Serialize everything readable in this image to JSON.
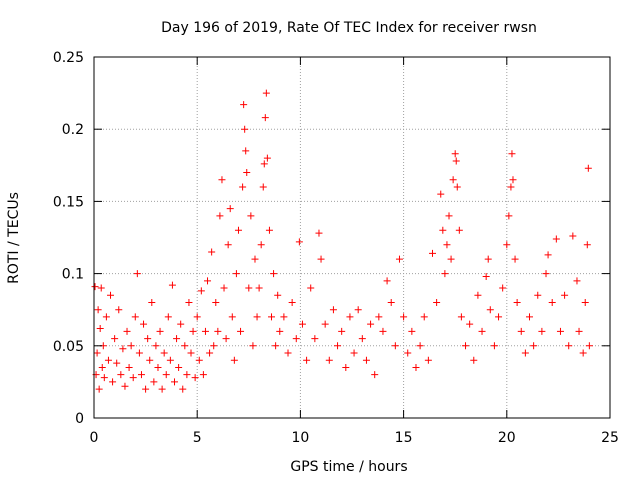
{
  "chart_data": {
    "type": "scatter",
    "title": "Day 196 of 2019, Rate Of TEC Index for receiver rwsn",
    "xlabel": "GPS time / hours",
    "ylabel": "ROTI / TECUs",
    "xlim": [
      0,
      25
    ],
    "ylim": [
      0,
      0.25
    ],
    "xticks": [
      0,
      5,
      10,
      15,
      20,
      25
    ],
    "yticks": [
      0,
      0.05,
      0.1,
      0.15,
      0.2,
      0.25
    ],
    "xtick_labels": [
      "0",
      "5",
      "10",
      "15",
      "20",
      "25"
    ],
    "ytick_labels": [
      "0",
      "0.05",
      "0.1",
      "0.15",
      "0.2",
      "0.25"
    ],
    "grid": true,
    "marker": "+",
    "color": "#ff0000",
    "series": [
      {
        "name": "ROTI",
        "points": [
          [
            0.05,
            0.091
          ],
          [
            0.1,
            0.03
          ],
          [
            0.15,
            0.045
          ],
          [
            0.2,
            0.075
          ],
          [
            0.25,
            0.02
          ],
          [
            0.3,
            0.062
          ],
          [
            0.35,
            0.09
          ],
          [
            0.4,
            0.035
          ],
          [
            0.45,
            0.05
          ],
          [
            0.5,
            0.028
          ],
          [
            0.6,
            0.07
          ],
          [
            0.7,
            0.04
          ],
          [
            0.8,
            0.085
          ],
          [
            0.9,
            0.025
          ],
          [
            1.0,
            0.055
          ],
          [
            1.1,
            0.038
          ],
          [
            1.2,
            0.075
          ],
          [
            1.3,
            0.03
          ],
          [
            1.4,
            0.048
          ],
          [
            1.5,
            0.022
          ],
          [
            1.6,
            0.06
          ],
          [
            1.7,
            0.035
          ],
          [
            1.8,
            0.05
          ],
          [
            1.9,
            0.028
          ],
          [
            2.0,
            0.07
          ],
          [
            2.1,
            0.1
          ],
          [
            2.2,
            0.045
          ],
          [
            2.3,
            0.03
          ],
          [
            2.4,
            0.065
          ],
          [
            2.5,
            0.02
          ],
          [
            2.6,
            0.055
          ],
          [
            2.7,
            0.04
          ],
          [
            2.8,
            0.08
          ],
          [
            2.9,
            0.025
          ],
          [
            3.0,
            0.05
          ],
          [
            3.1,
            0.035
          ],
          [
            3.2,
            0.06
          ],
          [
            3.3,
            0.02
          ],
          [
            3.4,
            0.045
          ],
          [
            3.5,
            0.03
          ],
          [
            3.6,
            0.07
          ],
          [
            3.7,
            0.04
          ],
          [
            3.8,
            0.092
          ],
          [
            3.9,
            0.025
          ],
          [
            4.0,
            0.055
          ],
          [
            4.1,
            0.035
          ],
          [
            4.2,
            0.065
          ],
          [
            4.3,
            0.02
          ],
          [
            4.4,
            0.05
          ],
          [
            4.5,
            0.03
          ],
          [
            4.6,
            0.08
          ],
          [
            4.7,
            0.045
          ],
          [
            4.8,
            0.06
          ],
          [
            4.9,
            0.028
          ],
          [
            5.0,
            0.07
          ],
          [
            5.1,
            0.04
          ],
          [
            5.2,
            0.088
          ],
          [
            5.3,
            0.03
          ],
          [
            5.4,
            0.06
          ],
          [
            5.5,
            0.095
          ],
          [
            5.6,
            0.045
          ],
          [
            5.7,
            0.115
          ],
          [
            5.8,
            0.05
          ],
          [
            5.9,
            0.08
          ],
          [
            6.0,
            0.06
          ],
          [
            6.1,
            0.14
          ],
          [
            6.2,
            0.165
          ],
          [
            6.3,
            0.09
          ],
          [
            6.4,
            0.055
          ],
          [
            6.5,
            0.12
          ],
          [
            6.6,
            0.145
          ],
          [
            6.7,
            0.07
          ],
          [
            6.8,
            0.04
          ],
          [
            6.9,
            0.1
          ],
          [
            7.0,
            0.13
          ],
          [
            7.1,
            0.06
          ],
          [
            7.2,
            0.16
          ],
          [
            7.25,
            0.217
          ],
          [
            7.3,
            0.2
          ],
          [
            7.35,
            0.185
          ],
          [
            7.4,
            0.17
          ],
          [
            7.5,
            0.09
          ],
          [
            7.6,
            0.14
          ],
          [
            7.7,
            0.05
          ],
          [
            7.8,
            0.11
          ],
          [
            7.9,
            0.07
          ],
          [
            8.0,
            0.09
          ],
          [
            8.1,
            0.12
          ],
          [
            8.2,
            0.16
          ],
          [
            8.25,
            0.176
          ],
          [
            8.3,
            0.208
          ],
          [
            8.35,
            0.225
          ],
          [
            8.4,
            0.18
          ],
          [
            8.5,
            0.13
          ],
          [
            8.6,
            0.07
          ],
          [
            8.7,
            0.1
          ],
          [
            8.8,
            0.05
          ],
          [
            8.9,
            0.085
          ],
          [
            9.0,
            0.06
          ],
          [
            9.2,
            0.07
          ],
          [
            9.4,
            0.045
          ],
          [
            9.6,
            0.08
          ],
          [
            9.8,
            0.055
          ],
          [
            9.95,
            0.122
          ],
          [
            10.1,
            0.065
          ],
          [
            10.3,
            0.04
          ],
          [
            10.5,
            0.09
          ],
          [
            10.7,
            0.055
          ],
          [
            10.9,
            0.128
          ],
          [
            11.0,
            0.11
          ],
          [
            11.2,
            0.065
          ],
          [
            11.4,
            0.04
          ],
          [
            11.6,
            0.075
          ],
          [
            11.8,
            0.05
          ],
          [
            12.0,
            0.06
          ],
          [
            12.2,
            0.035
          ],
          [
            12.4,
            0.07
          ],
          [
            12.6,
            0.045
          ],
          [
            12.8,
            0.075
          ],
          [
            13.0,
            0.055
          ],
          [
            13.2,
            0.04
          ],
          [
            13.4,
            0.065
          ],
          [
            13.6,
            0.03
          ],
          [
            13.8,
            0.07
          ],
          [
            14.0,
            0.06
          ],
          [
            14.2,
            0.095
          ],
          [
            14.4,
            0.08
          ],
          [
            14.6,
            0.05
          ],
          [
            14.8,
            0.11
          ],
          [
            15.0,
            0.07
          ],
          [
            15.2,
            0.045
          ],
          [
            15.4,
            0.06
          ],
          [
            15.6,
            0.035
          ],
          [
            15.8,
            0.05
          ],
          [
            16.0,
            0.07
          ],
          [
            16.2,
            0.04
          ],
          [
            16.4,
            0.114
          ],
          [
            16.6,
            0.08
          ],
          [
            16.8,
            0.155
          ],
          [
            16.9,
            0.13
          ],
          [
            17.0,
            0.1
          ],
          [
            17.1,
            0.12
          ],
          [
            17.2,
            0.14
          ],
          [
            17.3,
            0.11
          ],
          [
            17.4,
            0.165
          ],
          [
            17.5,
            0.183
          ],
          [
            17.55,
            0.178
          ],
          [
            17.6,
            0.16
          ],
          [
            17.7,
            0.13
          ],
          [
            17.8,
            0.07
          ],
          [
            18.0,
            0.05
          ],
          [
            18.2,
            0.065
          ],
          [
            18.4,
            0.04
          ],
          [
            18.6,
            0.085
          ],
          [
            18.8,
            0.06
          ],
          [
            19.0,
            0.098
          ],
          [
            19.1,
            0.11
          ],
          [
            19.2,
            0.075
          ],
          [
            19.4,
            0.05
          ],
          [
            19.6,
            0.07
          ],
          [
            19.8,
            0.09
          ],
          [
            20.0,
            0.12
          ],
          [
            20.1,
            0.14
          ],
          [
            20.2,
            0.16
          ],
          [
            20.25,
            0.183
          ],
          [
            20.3,
            0.165
          ],
          [
            20.4,
            0.11
          ],
          [
            20.5,
            0.08
          ],
          [
            20.7,
            0.06
          ],
          [
            20.9,
            0.045
          ],
          [
            21.1,
            0.07
          ],
          [
            21.3,
            0.05
          ],
          [
            21.5,
            0.085
          ],
          [
            21.7,
            0.06
          ],
          [
            21.9,
            0.1
          ],
          [
            22.0,
            0.113
          ],
          [
            22.2,
            0.08
          ],
          [
            22.4,
            0.124
          ],
          [
            22.6,
            0.06
          ],
          [
            22.8,
            0.085
          ],
          [
            23.0,
            0.05
          ],
          [
            23.2,
            0.126
          ],
          [
            23.4,
            0.095
          ],
          [
            23.5,
            0.06
          ],
          [
            23.7,
            0.045
          ],
          [
            23.8,
            0.08
          ],
          [
            23.9,
            0.12
          ],
          [
            23.95,
            0.173
          ],
          [
            24.0,
            0.05
          ]
        ]
      }
    ]
  }
}
